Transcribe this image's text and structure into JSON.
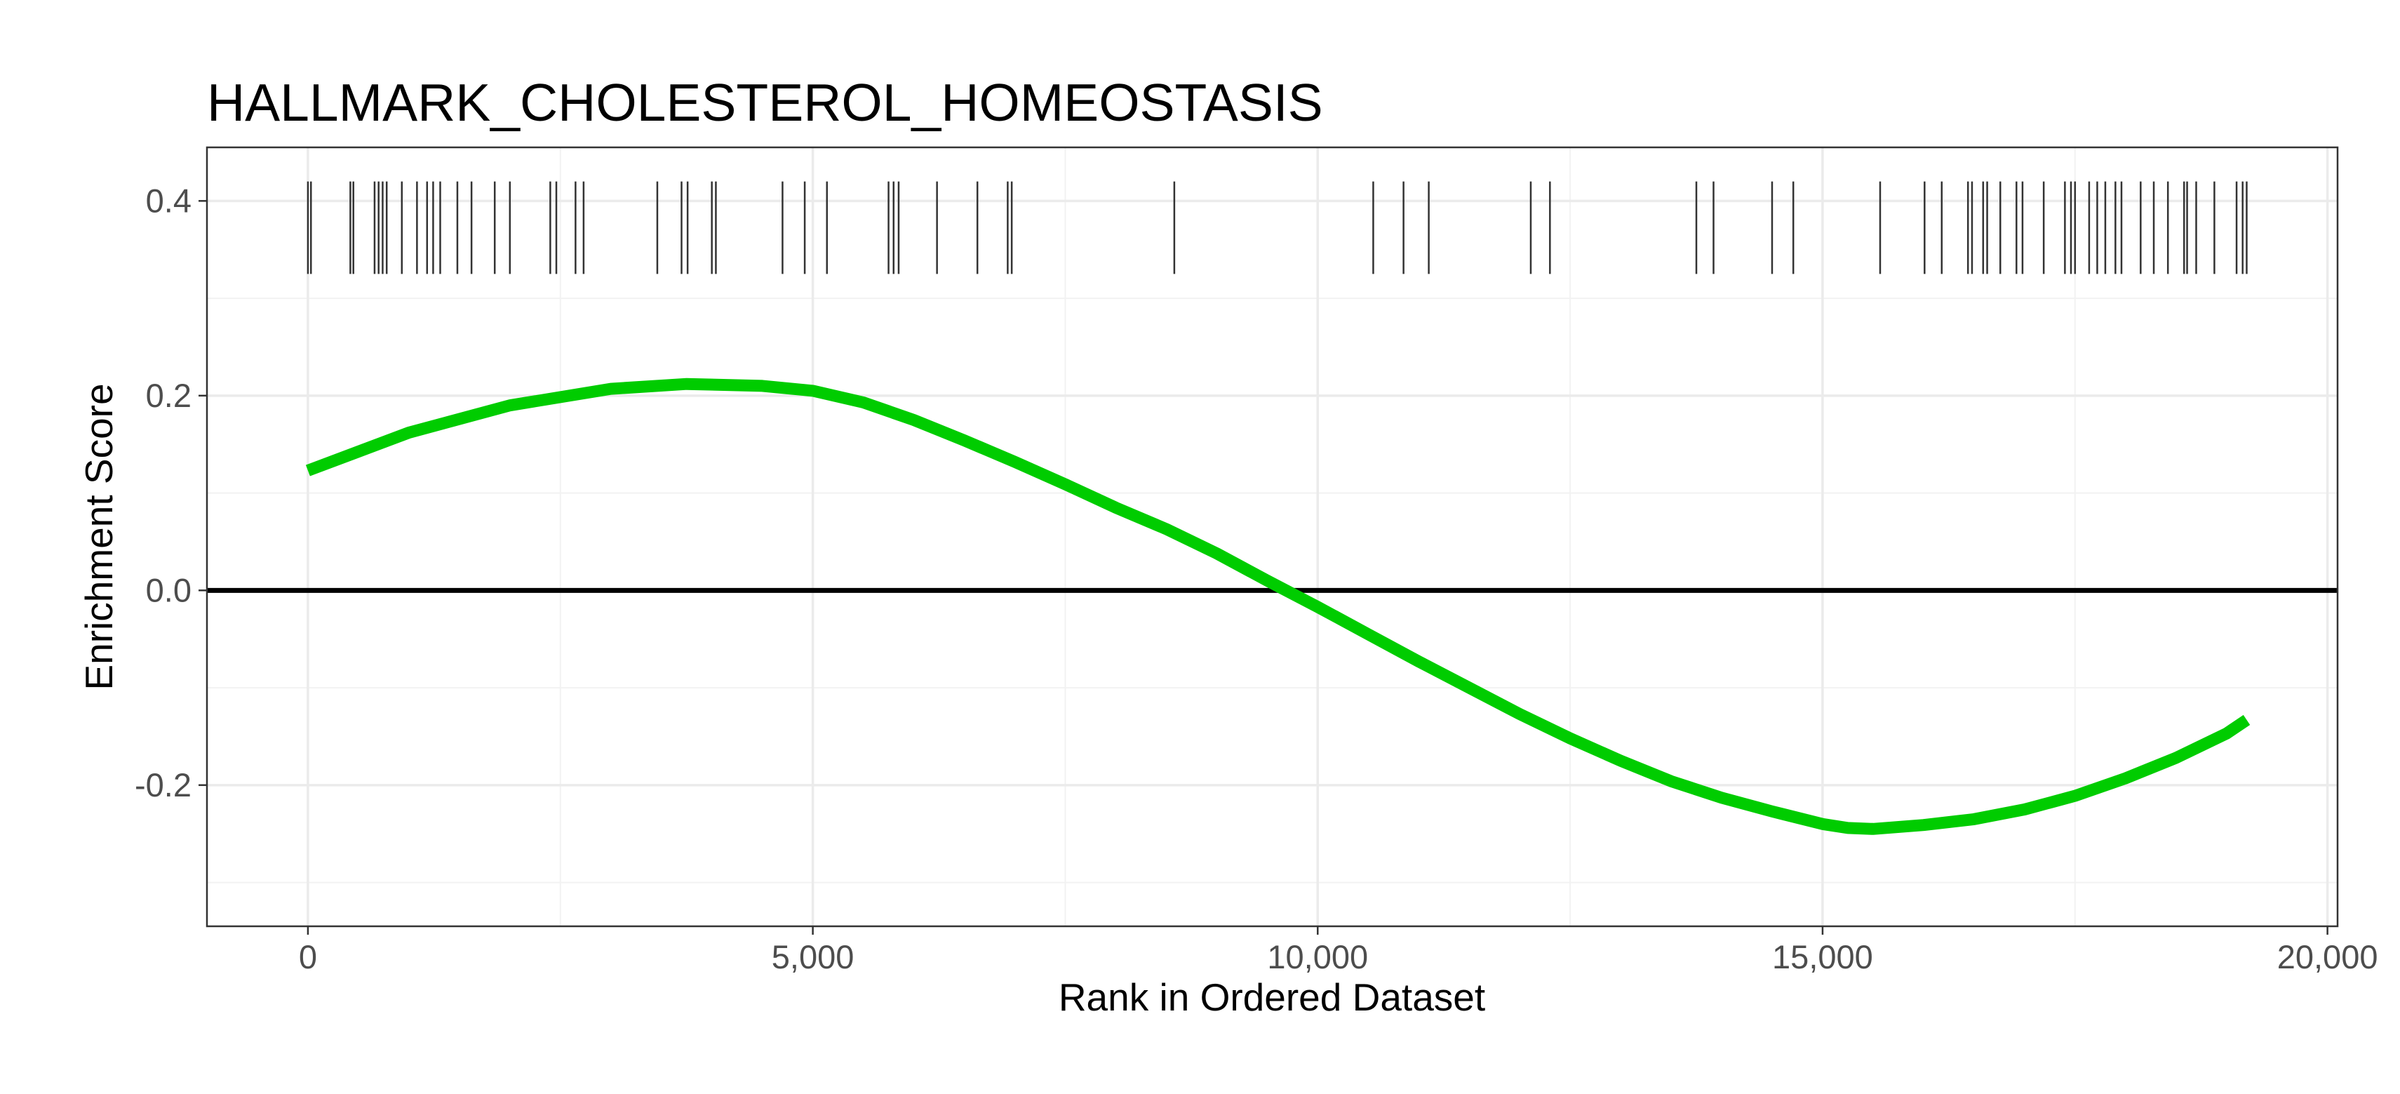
{
  "chart_data": {
    "type": "line",
    "title": "HALLMARK_CHOLESTEROL_HOMEOSTASIS",
    "xlabel": "Rank in Ordered Dataset",
    "ylabel": "Enrichment Score",
    "xlim": [
      -1000,
      20100
    ],
    "ylim": [
      -0.345,
      0.455
    ],
    "x_ticks": [
      0,
      5000,
      10000,
      15000,
      20000
    ],
    "x_tick_labels": [
      "0",
      "5,000",
      "10,000",
      "15,000",
      "20,000"
    ],
    "y_ticks": [
      -0.2,
      0.0,
      0.2,
      0.4
    ],
    "y_tick_labels": [
      "-0.2",
      "0.0",
      "0.2",
      "0.4"
    ],
    "grid": true,
    "series": [
      {
        "color": "#00cc00",
        "x": [
          0,
          1000,
          2000,
          3000,
          3750,
          4500,
          5000,
          5500,
          6000,
          6500,
          7000,
          7500,
          8000,
          8500,
          9000,
          9500,
          10000,
          10500,
          11000,
          11500,
          12000,
          12500,
          13000,
          13500,
          14000,
          14500,
          15000,
          15250,
          15500,
          16000,
          16500,
          17000,
          17500,
          18000,
          18500,
          19000,
          19200
        ],
        "y": [
          0.123,
          0.162,
          0.19,
          0.207,
          0.212,
          0.21,
          0.205,
          0.193,
          0.175,
          0.154,
          0.132,
          0.109,
          0.085,
          0.063,
          0.038,
          0.01,
          -0.017,
          -0.045,
          -0.073,
          -0.1,
          -0.127,
          -0.152,
          -0.175,
          -0.196,
          -0.213,
          -0.227,
          -0.24,
          -0.244,
          -0.245,
          -0.241,
          -0.235,
          -0.225,
          -0.211,
          -0.193,
          -0.172,
          -0.147,
          -0.133
        ]
      }
    ],
    "zero_line": 0.0,
    "gene_hits": {
      "y_range": [
        0.325,
        0.42
      ],
      "color": "#333333",
      "ranks": [
        0,
        30,
        420,
        450,
        660,
        700,
        740,
        780,
        930,
        1080,
        1180,
        1240,
        1310,
        1480,
        1620,
        1850,
        2000,
        2400,
        2460,
        2650,
        2730,
        3460,
        3700,
        3760,
        4000,
        4040,
        4700,
        4920,
        5140,
        5750,
        5800,
        5850,
        6230,
        6630,
        6930,
        6970,
        8580,
        10550,
        10850,
        11100,
        12110,
        12300,
        13750,
        13920,
        14500,
        14710,
        15570,
        16010,
        16180,
        16440,
        16480,
        16590,
        16630,
        16760,
        16920,
        16980,
        17190,
        17400,
        17460,
        17500,
        17640,
        17720,
        17800,
        17900,
        17960,
        18150,
        18280,
        18420,
        18580,
        18610,
        18700,
        18880,
        19100,
        19160,
        19200
      ]
    }
  }
}
